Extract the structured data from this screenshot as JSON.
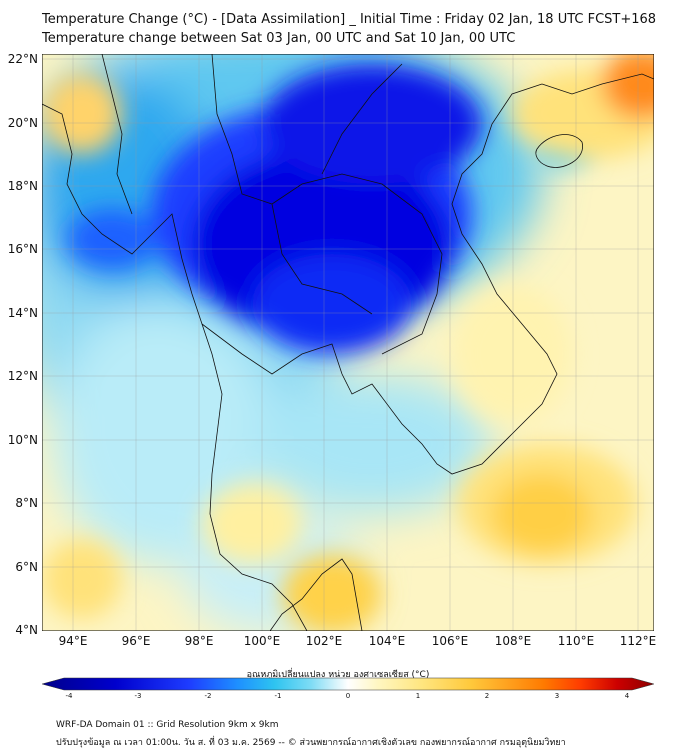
{
  "title_line1": "Temperature Change (°C) - [Data Assimilation] _ Initial Time : Friday 02 Jan, 18 UTC FCST+168",
  "title_line2": "Temperature change between Sat 03 Jan, 00 UTC and Sat 10 Jan, 00 UTC",
  "map": {
    "lon_range": [
      93,
      112.5
    ],
    "lat_range": [
      4,
      22.2
    ],
    "lat_labels": [
      "22°N",
      "20°N",
      "18°N",
      "16°N",
      "14°N",
      "12°N",
      "10°N",
      "8°N",
      "6°N",
      "4°N"
    ],
    "lon_labels": [
      "94°E",
      "96°E",
      "98°E",
      "100°E",
      "102°E",
      "104°E",
      "106°E",
      "108°E",
      "110°E",
      "112°E"
    ]
  },
  "colorbar": {
    "title": "อุณหภูมิเปลี่ยนแปลง หน่วย องศาเซลเซียส (°C)",
    "ticks": [
      "-4",
      "-3",
      "-2",
      "-1",
      "0",
      "1",
      "2",
      "3",
      "4"
    ],
    "range": [
      -4,
      4
    ],
    "colors": [
      "#00008b",
      "#0000cd",
      "#1e3cff",
      "#1e90ff",
      "#2ec4f0",
      "#7fdcf5",
      "#d6f3fb",
      "#ffffff",
      "#fff6c0",
      "#ffe680",
      "#ffc93c",
      "#ffa21f",
      "#ff7a00",
      "#ff3c00",
      "#cc0000",
      "#8b0000"
    ]
  },
  "footer_line1": "WRF-DA Domain 01 :: Grid Resolution 9km x 9km",
  "footer_line2": "ปรับปรุงข้อมูล ณ เวลา 01:00น. วัน ส. ที่ 03 ม.ค. 2569 -- © ส่วนพยากรณ์อากาศเชิงตัวเลข กองพยากรณ์อากาศ กรมอุตุนิยมวิทยา"
}
